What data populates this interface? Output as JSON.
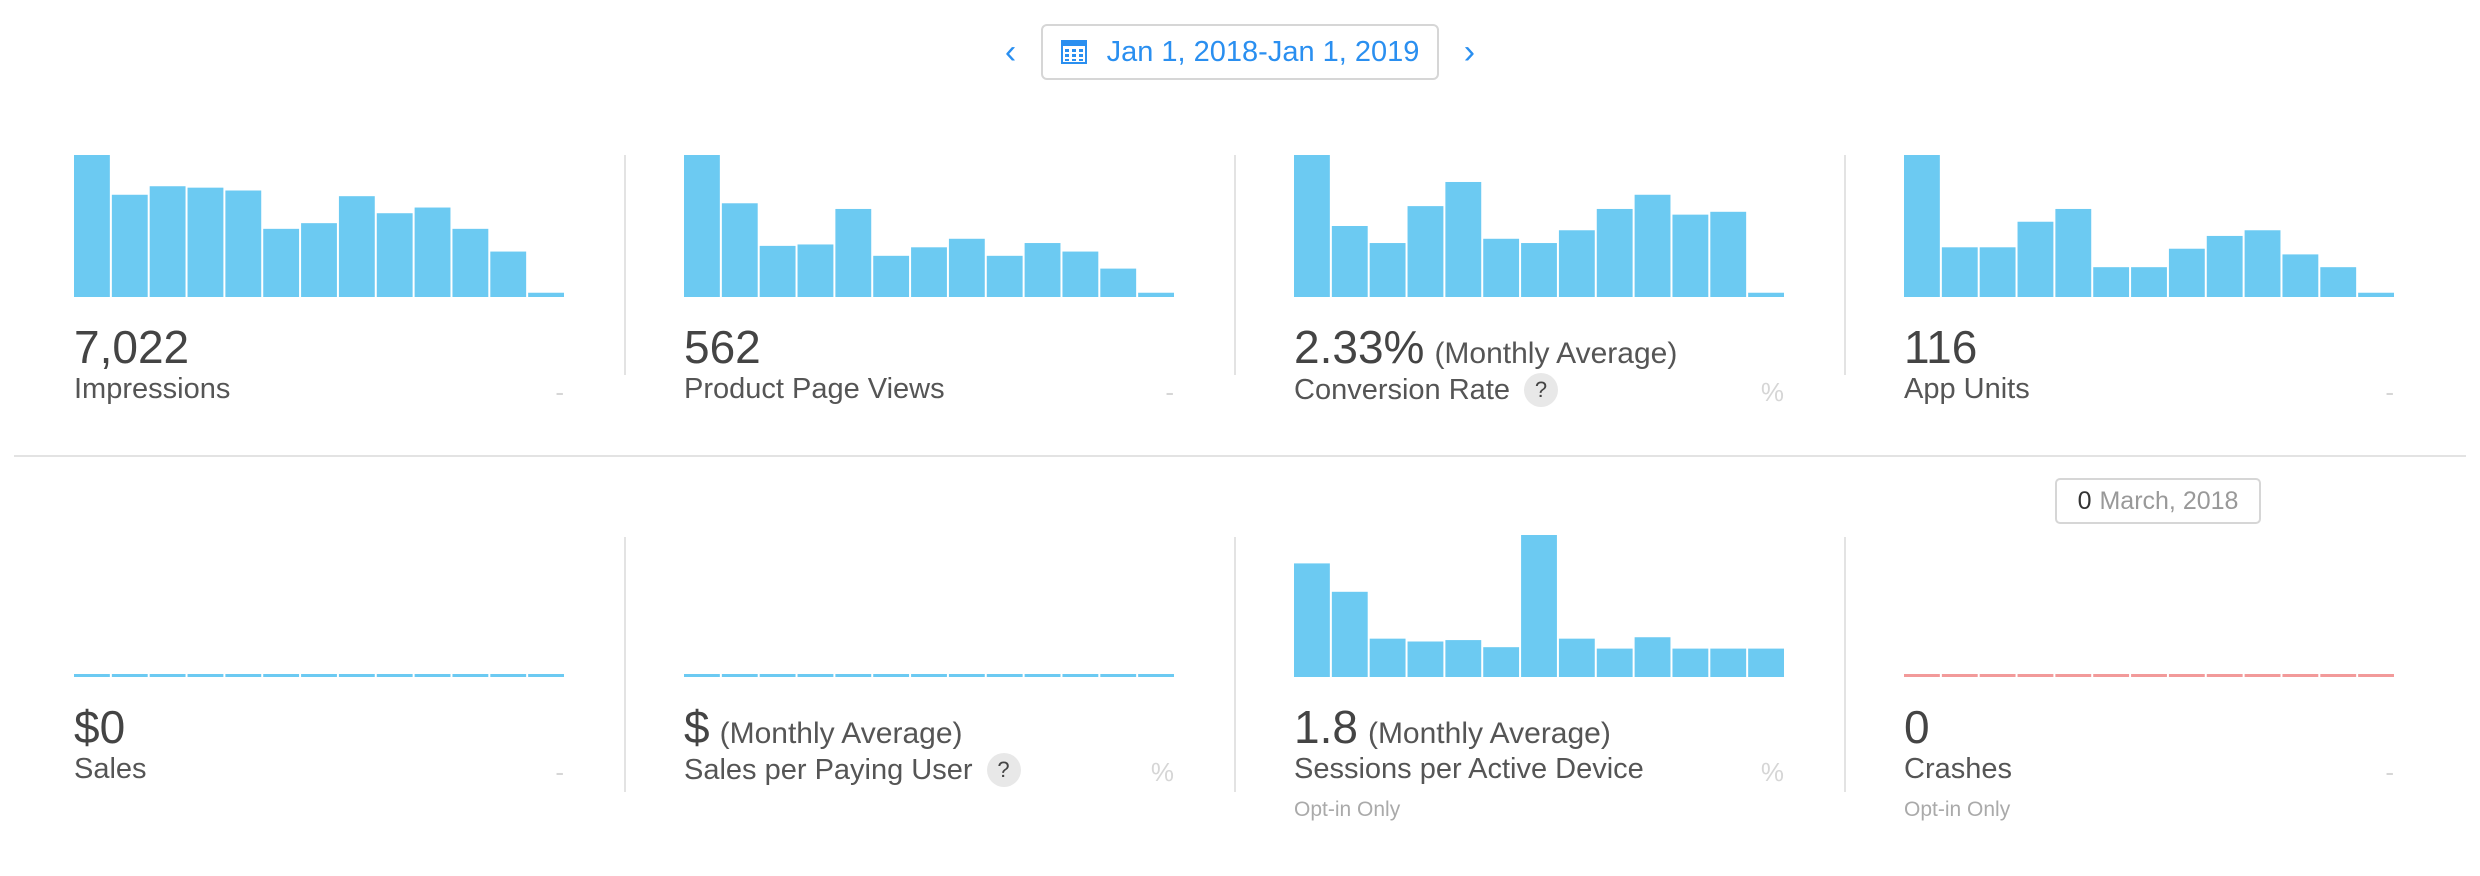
{
  "date_range": {
    "prev_icon": "chevron-left-icon",
    "next_icon": "chevron-right-icon",
    "calendar_icon": "calendar-icon",
    "label": "Jan 1, 2018-Jan 1, 2019"
  },
  "colors": {
    "bar": "#6ccaf2",
    "crash_line": "#f29a9a",
    "accent": "#2a8ff0"
  },
  "metrics": [
    {
      "value": "7,022",
      "suffix": "",
      "label": "Impressions",
      "unit": "-",
      "chart_data": {
        "type": "bar",
        "values": [
          100,
          72,
          78,
          77,
          75,
          48,
          52,
          71,
          59,
          63,
          48,
          32,
          3
        ],
        "ylim": [
          0,
          100
        ]
      }
    },
    {
      "value": "562",
      "suffix": "",
      "label": "Product Page Views",
      "unit": "-",
      "chart_data": {
        "type": "bar",
        "values": [
          100,
          66,
          36,
          37,
          62,
          29,
          35,
          41,
          29,
          38,
          32,
          20,
          3
        ],
        "ylim": [
          0,
          100
        ]
      }
    },
    {
      "value": "2.33%",
      "suffix": "(Monthly Average)",
      "label": "Conversion Rate",
      "unit": "%",
      "chart_data": {
        "type": "bar",
        "values": [
          100,
          50,
          38,
          64,
          81,
          41,
          38,
          47,
          62,
          72,
          58,
          60,
          3
        ],
        "ylim": [
          0,
          100
        ]
      }
    },
    {
      "value": "116",
      "suffix": "",
      "label": "App Units",
      "unit": "-",
      "chart_data": {
        "type": "bar",
        "values": [
          100,
          35,
          35,
          53,
          62,
          21,
          21,
          34,
          43,
          47,
          30,
          21,
          3
        ],
        "ylim": [
          0,
          100
        ]
      }
    },
    {
      "value": "$0",
      "suffix": "",
      "label": "Sales",
      "unit": "-",
      "chart_data": {
        "type": "bar",
        "values": [
          0,
          0,
          0,
          0,
          0,
          0,
          0,
          0,
          0,
          0,
          0,
          0,
          0
        ],
        "ylim": [
          0,
          100
        ]
      }
    },
    {
      "value": "$",
      "suffix": "(Monthly Average)",
      "label": "Sales per Paying User",
      "unit": "%",
      "chart_data": {
        "type": "bar",
        "values": [
          0,
          0,
          0,
          0,
          0,
          0,
          0,
          0,
          0,
          0,
          0,
          0,
          0
        ],
        "ylim": [
          0,
          100
        ]
      }
    },
    {
      "value": "1.8",
      "suffix": "(Monthly Average)",
      "label": "Sessions per Active Device",
      "unit": "%",
      "note": "Opt-in Only",
      "chart_data": {
        "type": "bar",
        "values": [
          80,
          60,
          27,
          25,
          26,
          21,
          100,
          27,
          20,
          28,
          20,
          20,
          20
        ],
        "ylim": [
          0,
          100
        ]
      }
    },
    {
      "value": "0",
      "suffix": "",
      "label": "Crashes",
      "unit": "-",
      "note": "Opt-in Only",
      "chart_data": {
        "type": "bar",
        "values": [
          0,
          0,
          0,
          0,
          0,
          0,
          0,
          0,
          0,
          0,
          0,
          0,
          0
        ],
        "ylim": [
          0,
          100
        ]
      }
    }
  ],
  "tooltip": {
    "value": "0",
    "label": "March, 2018"
  }
}
